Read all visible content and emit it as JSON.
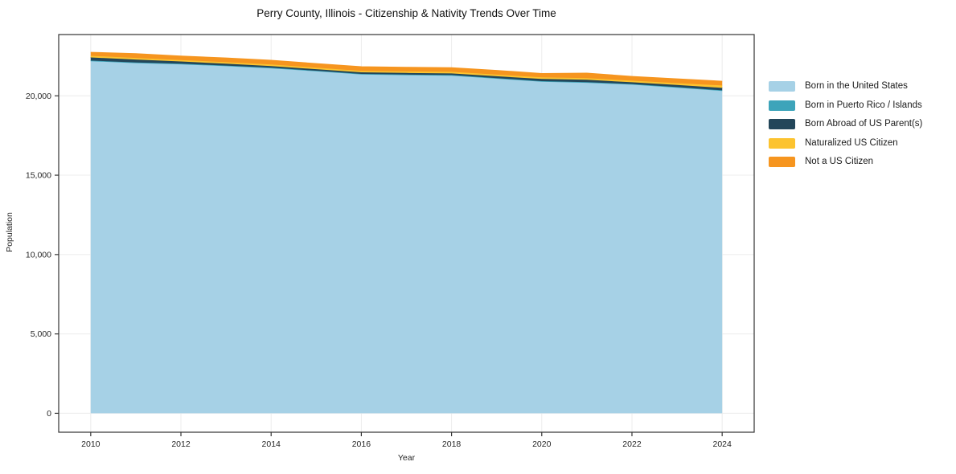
{
  "title": "Perry County, Illinois - Citizenship & Nativity Trends Over Time",
  "chart_data": {
    "type": "area",
    "stacked": true,
    "title": "Perry County, Illinois - Citizenship & Nativity Trends Over Time",
    "xlabel": "Year",
    "ylabel": "Population",
    "x": [
      2010,
      2011,
      2012,
      2013,
      2014,
      2015,
      2016,
      2017,
      2018,
      2019,
      2020,
      2021,
      2022,
      2023,
      2024
    ],
    "series": [
      {
        "name": "Born in the United States",
        "color": "#a6d1e6",
        "values": [
          22200,
          22080,
          22010,
          21890,
          21760,
          21570,
          21370,
          21330,
          21300,
          21100,
          20910,
          20850,
          20730,
          20540,
          20340
        ]
      },
      {
        "name": "Born in Puerto Rico / Islands",
        "color": "#3da4ba",
        "values": [
          20,
          20,
          15,
          15,
          10,
          10,
          10,
          10,
          10,
          15,
          15,
          10,
          10,
          10,
          10
        ]
      },
      {
        "name": "Born Abroad of US Parent(s)",
        "color": "#23465a",
        "values": [
          200,
          185,
          140,
          120,
          100,
          100,
          100,
          100,
          100,
          120,
          135,
          150,
          115,
          130,
          150
        ]
      },
      {
        "name": "Naturalized US Citizen",
        "color": "#fcc32f",
        "values": [
          100,
          100,
          90,
          95,
          100,
          90,
          85,
          95,
          100,
          100,
          100,
          100,
          100,
          120,
          150
        ]
      },
      {
        "name": "Not a US Citizen",
        "color": "#f6951f",
        "values": [
          205,
          255,
          240,
          250,
          255,
          250,
          255,
          250,
          245,
          250,
          230,
          305,
          255,
          255,
          255
        ]
      }
    ],
    "xlim": [
      2009.29,
      2024.71
    ],
    "ylim": [
      -1193,
      23860
    ],
    "xticks": [
      2010,
      2012,
      2014,
      2016,
      2018,
      2020,
      2022,
      2024
    ],
    "xtick_labels": [
      "2010",
      "2012",
      "2014",
      "2016",
      "2018",
      "2020",
      "2022",
      "2024"
    ],
    "yticks": [
      0,
      5000,
      10000,
      15000,
      20000
    ],
    "ytick_labels": [
      "0",
      "5,000",
      "10,000",
      "15,000",
      "20,000"
    ],
    "grid": true,
    "grid_color": "#ececec",
    "frame_color": "#333333",
    "legend_position": "right of plot"
  }
}
